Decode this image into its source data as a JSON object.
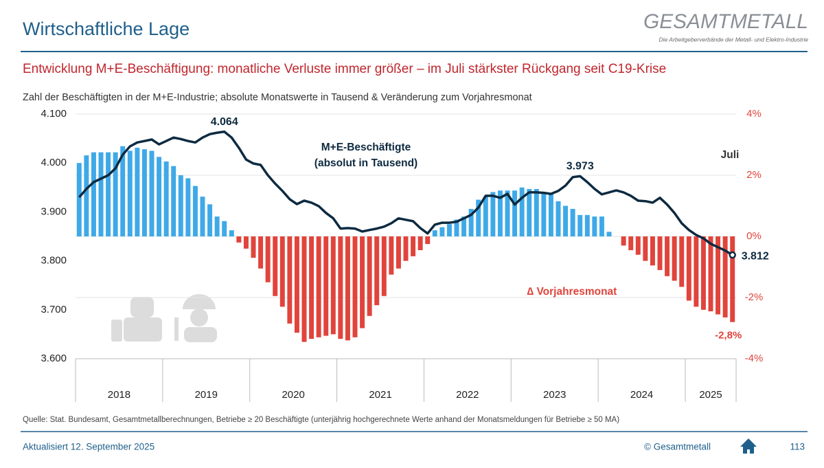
{
  "page": {
    "heading": "Wirtschaftliche Lage",
    "logo": "GESAMTMETALL",
    "logo_tagline": "Die Arbeitgeberverbände der Metall- und Elektro-Industrie",
    "source": "Quelle: Stat. Bundesamt, Gesamtmetallberechnungen, Betriebe ≥ 20 Beschäftigte (unterjährig hochgerechnete Werte anhand der Monatsmeldungen für Betriebe ≥ 50 MA)",
    "updated": "Aktualisiert 12. September 2025",
    "copyright": "© Gesamtmetall",
    "page_number": "113"
  },
  "chart_data": {
    "type": "bar-line",
    "title": "Entwicklung  M+E-Beschäftigung: monatliche Verluste immer größer – im Juli stärkster Rückgang seit C19-Krise",
    "subtitle": "Zahl der Beschäftigten in der M+E-Industrie; absolute Monatswerte in Tausend & Veränderung zum Vorjahresmonat",
    "x_groups": [
      "2018",
      "2019",
      "2020",
      "2021",
      "2022",
      "2023",
      "2024",
      "2025"
    ],
    "categories": [
      null,
      null,
      null,
      null,
      null,
      null,
      null,
      null,
      null,
      null,
      null,
      null,
      null,
      null,
      null,
      null,
      null,
      null,
      null,
      null,
      null,
      null,
      null,
      null,
      null,
      null,
      null,
      null,
      null,
      null,
      null,
      null,
      null,
      null,
      null,
      null,
      null,
      null,
      null,
      null,
      null,
      null,
      null,
      null,
      null,
      null,
      null,
      null,
      null,
      null,
      null,
      null,
      null,
      null,
      null,
      null,
      null,
      null,
      null,
      null,
      null,
      null,
      null,
      null,
      null,
      null,
      null,
      null,
      null,
      null,
      null,
      null,
      null,
      null,
      null,
      null,
      null,
      null,
      null,
      null,
      null,
      null,
      null,
      null,
      null,
      null,
      null,
      null,
      null,
      null,
      null
    ],
    "series": [
      {
        "name": "∆ Vorjahresmonat",
        "type": "bar",
        "axis": "y2",
        "color": "#3fa9e8",
        "negative_color": "#e0443c",
        "values": [
          2.4,
          2.65,
          2.75,
          2.75,
          2.75,
          2.75,
          2.95,
          2.8,
          2.9,
          2.85,
          2.8,
          2.6,
          2.45,
          2.3,
          2.0,
          1.9,
          1.65,
          1.3,
          1.05,
          0.65,
          0.5,
          0.2,
          -0.2,
          -0.4,
          -0.7,
          -1.05,
          -1.5,
          -1.95,
          -2.3,
          -2.85,
          -3.15,
          -3.45,
          -3.35,
          -3.3,
          -3.25,
          -3.2,
          -3.35,
          -3.4,
          -3.3,
          -3.0,
          -2.6,
          -2.25,
          -1.95,
          -1.25,
          -1.05,
          -0.8,
          -0.65,
          -0.45,
          -0.25,
          0.2,
          0.3,
          0.4,
          0.55,
          0.65,
          0.9,
          1.2,
          1.3,
          1.45,
          1.5,
          1.5,
          1.5,
          1.6,
          1.55,
          1.55,
          1.45,
          1.4,
          1.15,
          1.0,
          0.9,
          0.7,
          0.7,
          0.65,
          0.65,
          0.15,
          0.0,
          -0.3,
          -0.45,
          -0.6,
          -0.8,
          -0.95,
          -1.1,
          -1.3,
          -1.45,
          -1.65,
          -2.1,
          -2.3,
          -2.4,
          -2.45,
          -2.55,
          -2.65,
          -2.8
        ],
        "value_labels": [
          null,
          null,
          null,
          null,
          null,
          null,
          null,
          null,
          null,
          null,
          null,
          null,
          null,
          null,
          null,
          null,
          null,
          null,
          null,
          null,
          null,
          null,
          null,
          null,
          null,
          null,
          null,
          null,
          null,
          null,
          null,
          null,
          null,
          null,
          null,
          null,
          null,
          null,
          null,
          null,
          null,
          null,
          null,
          null,
          null,
          null,
          null,
          null,
          null,
          null,
          null,
          null,
          null,
          null,
          null,
          null,
          null,
          null,
          null,
          null,
          null,
          null,
          null,
          null,
          null,
          null,
          null,
          null,
          null,
          null,
          null,
          null,
          null,
          null,
          null,
          null,
          null,
          null,
          null,
          null,
          null,
          null,
          null,
          null,
          null,
          null,
          null,
          null,
          null,
          null,
          "-2,8%"
        ]
      },
      {
        "name": "M+E-Beschäftigte",
        "type": "line",
        "axis": "y",
        "color": "#0d2a40",
        "values": [
          3930,
          3947,
          3961,
          3968,
          3975,
          3989,
          4017,
          4034,
          4042,
          4045,
          4048,
          4038,
          4045,
          4052,
          4049,
          4045,
          4042,
          4052,
          4059,
          4062,
          4064,
          4052,
          4031,
          4007,
          3999,
          3996,
          3975,
          3958,
          3943,
          3926,
          3916,
          3923,
          3919,
          3912,
          3898,
          3887,
          3866,
          3867,
          3866,
          3860,
          3863,
          3866,
          3870,
          3877,
          3887,
          3884,
          3881,
          3867,
          3856,
          3874,
          3878,
          3878,
          3880,
          3887,
          3894,
          3909,
          3933,
          3933,
          3929,
          3937,
          3915,
          3929,
          3940,
          3940,
          3939,
          3937,
          3943,
          3954,
          3971,
          3973,
          3961,
          3947,
          3936,
          3940,
          3944,
          3940,
          3933,
          3923,
          3922,
          3919,
          3929,
          3915,
          3898,
          3877,
          3863,
          3853,
          3846,
          3835,
          3828,
          3821,
          3812
        ],
        "value_labels": [
          null,
          null,
          null,
          null,
          null,
          null,
          null,
          null,
          null,
          null,
          null,
          null,
          null,
          null,
          null,
          null,
          null,
          null,
          null,
          null,
          "4.064",
          null,
          null,
          null,
          null,
          null,
          null,
          null,
          null,
          null,
          null,
          null,
          null,
          null,
          null,
          null,
          null,
          null,
          null,
          null,
          null,
          null,
          null,
          null,
          null,
          null,
          null,
          null,
          null,
          null,
          null,
          null,
          null,
          null,
          null,
          null,
          null,
          null,
          null,
          null,
          null,
          null,
          null,
          null,
          null,
          null,
          null,
          null,
          null,
          "3.973",
          null,
          null,
          null,
          null,
          null,
          null,
          null,
          null,
          null,
          null,
          null,
          null,
          null,
          null,
          null,
          null,
          null,
          null,
          null,
          null,
          "3.812"
        ]
      }
    ],
    "annotations": [
      "M+E-Beschäftigte",
      "(absolut in Tausend)",
      "∆ Vorjahresmonat",
      "Juli"
    ],
    "ylim": [
      3600,
      4100
    ],
    "yticks": [
      {
        "value": 3600,
        "label": "3.600"
      },
      {
        "value": 3700,
        "label": "3.700"
      },
      {
        "value": 3800,
        "label": "3.800"
      },
      {
        "value": 3900,
        "label": "3.900"
      },
      {
        "value": 4000,
        "label": "4.000"
      },
      {
        "value": 4100,
        "label": "4.100"
      }
    ],
    "y2lim": [
      -4,
      4
    ],
    "y2ticks": [
      {
        "value": -4,
        "label": "-4%"
      },
      {
        "value": -2,
        "label": "-2%"
      },
      {
        "value": 0,
        "label": "0%"
      },
      {
        "value": 2,
        "label": "2%"
      },
      {
        "value": 4,
        "label": "4%"
      }
    ],
    "grid": true
  }
}
